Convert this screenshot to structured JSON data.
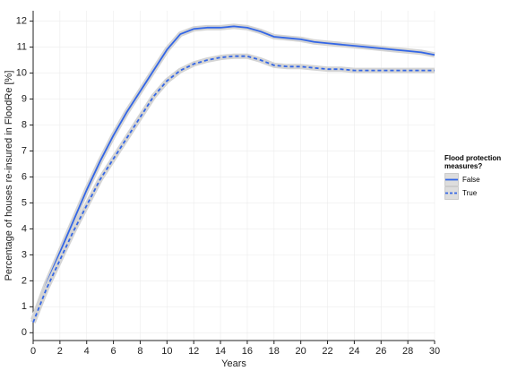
{
  "chart_data": {
    "type": "line",
    "x_label": "Years",
    "y_label": "Percentage of houses re-insured in FloodRe [%]",
    "legend_title": "Flood protection measures?",
    "legend_position": "right",
    "grid": true,
    "x": [
      0,
      1,
      2,
      3,
      4,
      5,
      6,
      7,
      8,
      9,
      10,
      11,
      12,
      13,
      14,
      15,
      16,
      17,
      18,
      19,
      20,
      21,
      22,
      23,
      24,
      25,
      26,
      27,
      28,
      29,
      30
    ],
    "series": [
      {
        "name": "False",
        "color": "#3366e6",
        "dashed": false,
        "values": [
          0.5,
          1.9,
          3.1,
          4.3,
          5.5,
          6.6,
          7.6,
          8.5,
          9.3,
          10.1,
          10.9,
          11.5,
          11.7,
          11.75,
          11.75,
          11.8,
          11.75,
          11.6,
          11.4,
          11.35,
          11.3,
          11.2,
          11.15,
          11.1,
          11.05,
          11.0,
          10.95,
          10.9,
          10.85,
          10.8,
          10.7
        ]
      },
      {
        "name": "True",
        "color": "#3366e6",
        "dashed": true,
        "values": [
          0.4,
          1.7,
          2.8,
          3.9,
          4.9,
          5.9,
          6.7,
          7.5,
          8.3,
          9.1,
          9.7,
          10.1,
          10.35,
          10.5,
          10.6,
          10.65,
          10.65,
          10.5,
          10.3,
          10.25,
          10.25,
          10.2,
          10.15,
          10.15,
          10.1,
          10.1,
          10.1,
          10.1,
          10.1,
          10.1,
          10.1
        ]
      }
    ],
    "xlim": [
      0,
      30
    ],
    "ylim": [
      -0.3,
      12.4
    ],
    "xticks": [
      0,
      2,
      4,
      6,
      8,
      10,
      12,
      14,
      16,
      18,
      20,
      22,
      24,
      26,
      28,
      30
    ],
    "yticks": [
      0,
      1,
      2,
      3,
      4,
      5,
      6,
      7,
      8,
      9,
      10,
      11,
      12
    ]
  }
}
